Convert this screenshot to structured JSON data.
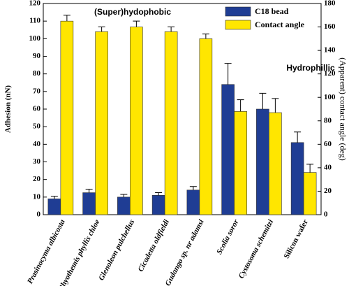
{
  "chart_data": {
    "type": "bar",
    "annotations": [
      "(Super)hydophobic",
      "Hydrophillic"
    ],
    "ylabel": "Adhesion (nN)",
    "y2label": "(Apparent) contact angle (deg)",
    "categories": [
      "Prasinocyma albicosta",
      "Rhyothemis phyllis chloe",
      "Glenoleon pulchellus",
      "Cicadetta oldfieldi",
      "Gudango sp. nr adamsi",
      "Scolia soror",
      "Cystosoma schemitzi",
      "Silicon wafer"
    ],
    "series": [
      {
        "name": "C18 bead",
        "color": "#1f3d94",
        "values": [
          9,
          12.5,
          10,
          11,
          14,
          74,
          60,
          41
        ],
        "errors": [
          1.5,
          2,
          1.5,
          1.5,
          2,
          12,
          9,
          6
        ]
      },
      {
        "name": "Contact angle",
        "color": "#ffe600",
        "axis": "y2",
        "values": [
          165,
          156,
          160,
          156,
          150,
          88,
          87,
          36
        ],
        "errors": [
          5,
          4,
          5,
          4,
          4,
          10,
          12,
          7
        ]
      }
    ],
    "ylim": [
      0,
      120
    ],
    "yticks": [
      0,
      10,
      20,
      30,
      40,
      50,
      60,
      70,
      80,
      90,
      100,
      110,
      120
    ],
    "y2lim": [
      0,
      180
    ],
    "y2ticks": [
      0,
      20,
      40,
      60,
      80,
      100,
      120,
      140,
      160,
      180
    ],
    "legend": "upper right"
  }
}
